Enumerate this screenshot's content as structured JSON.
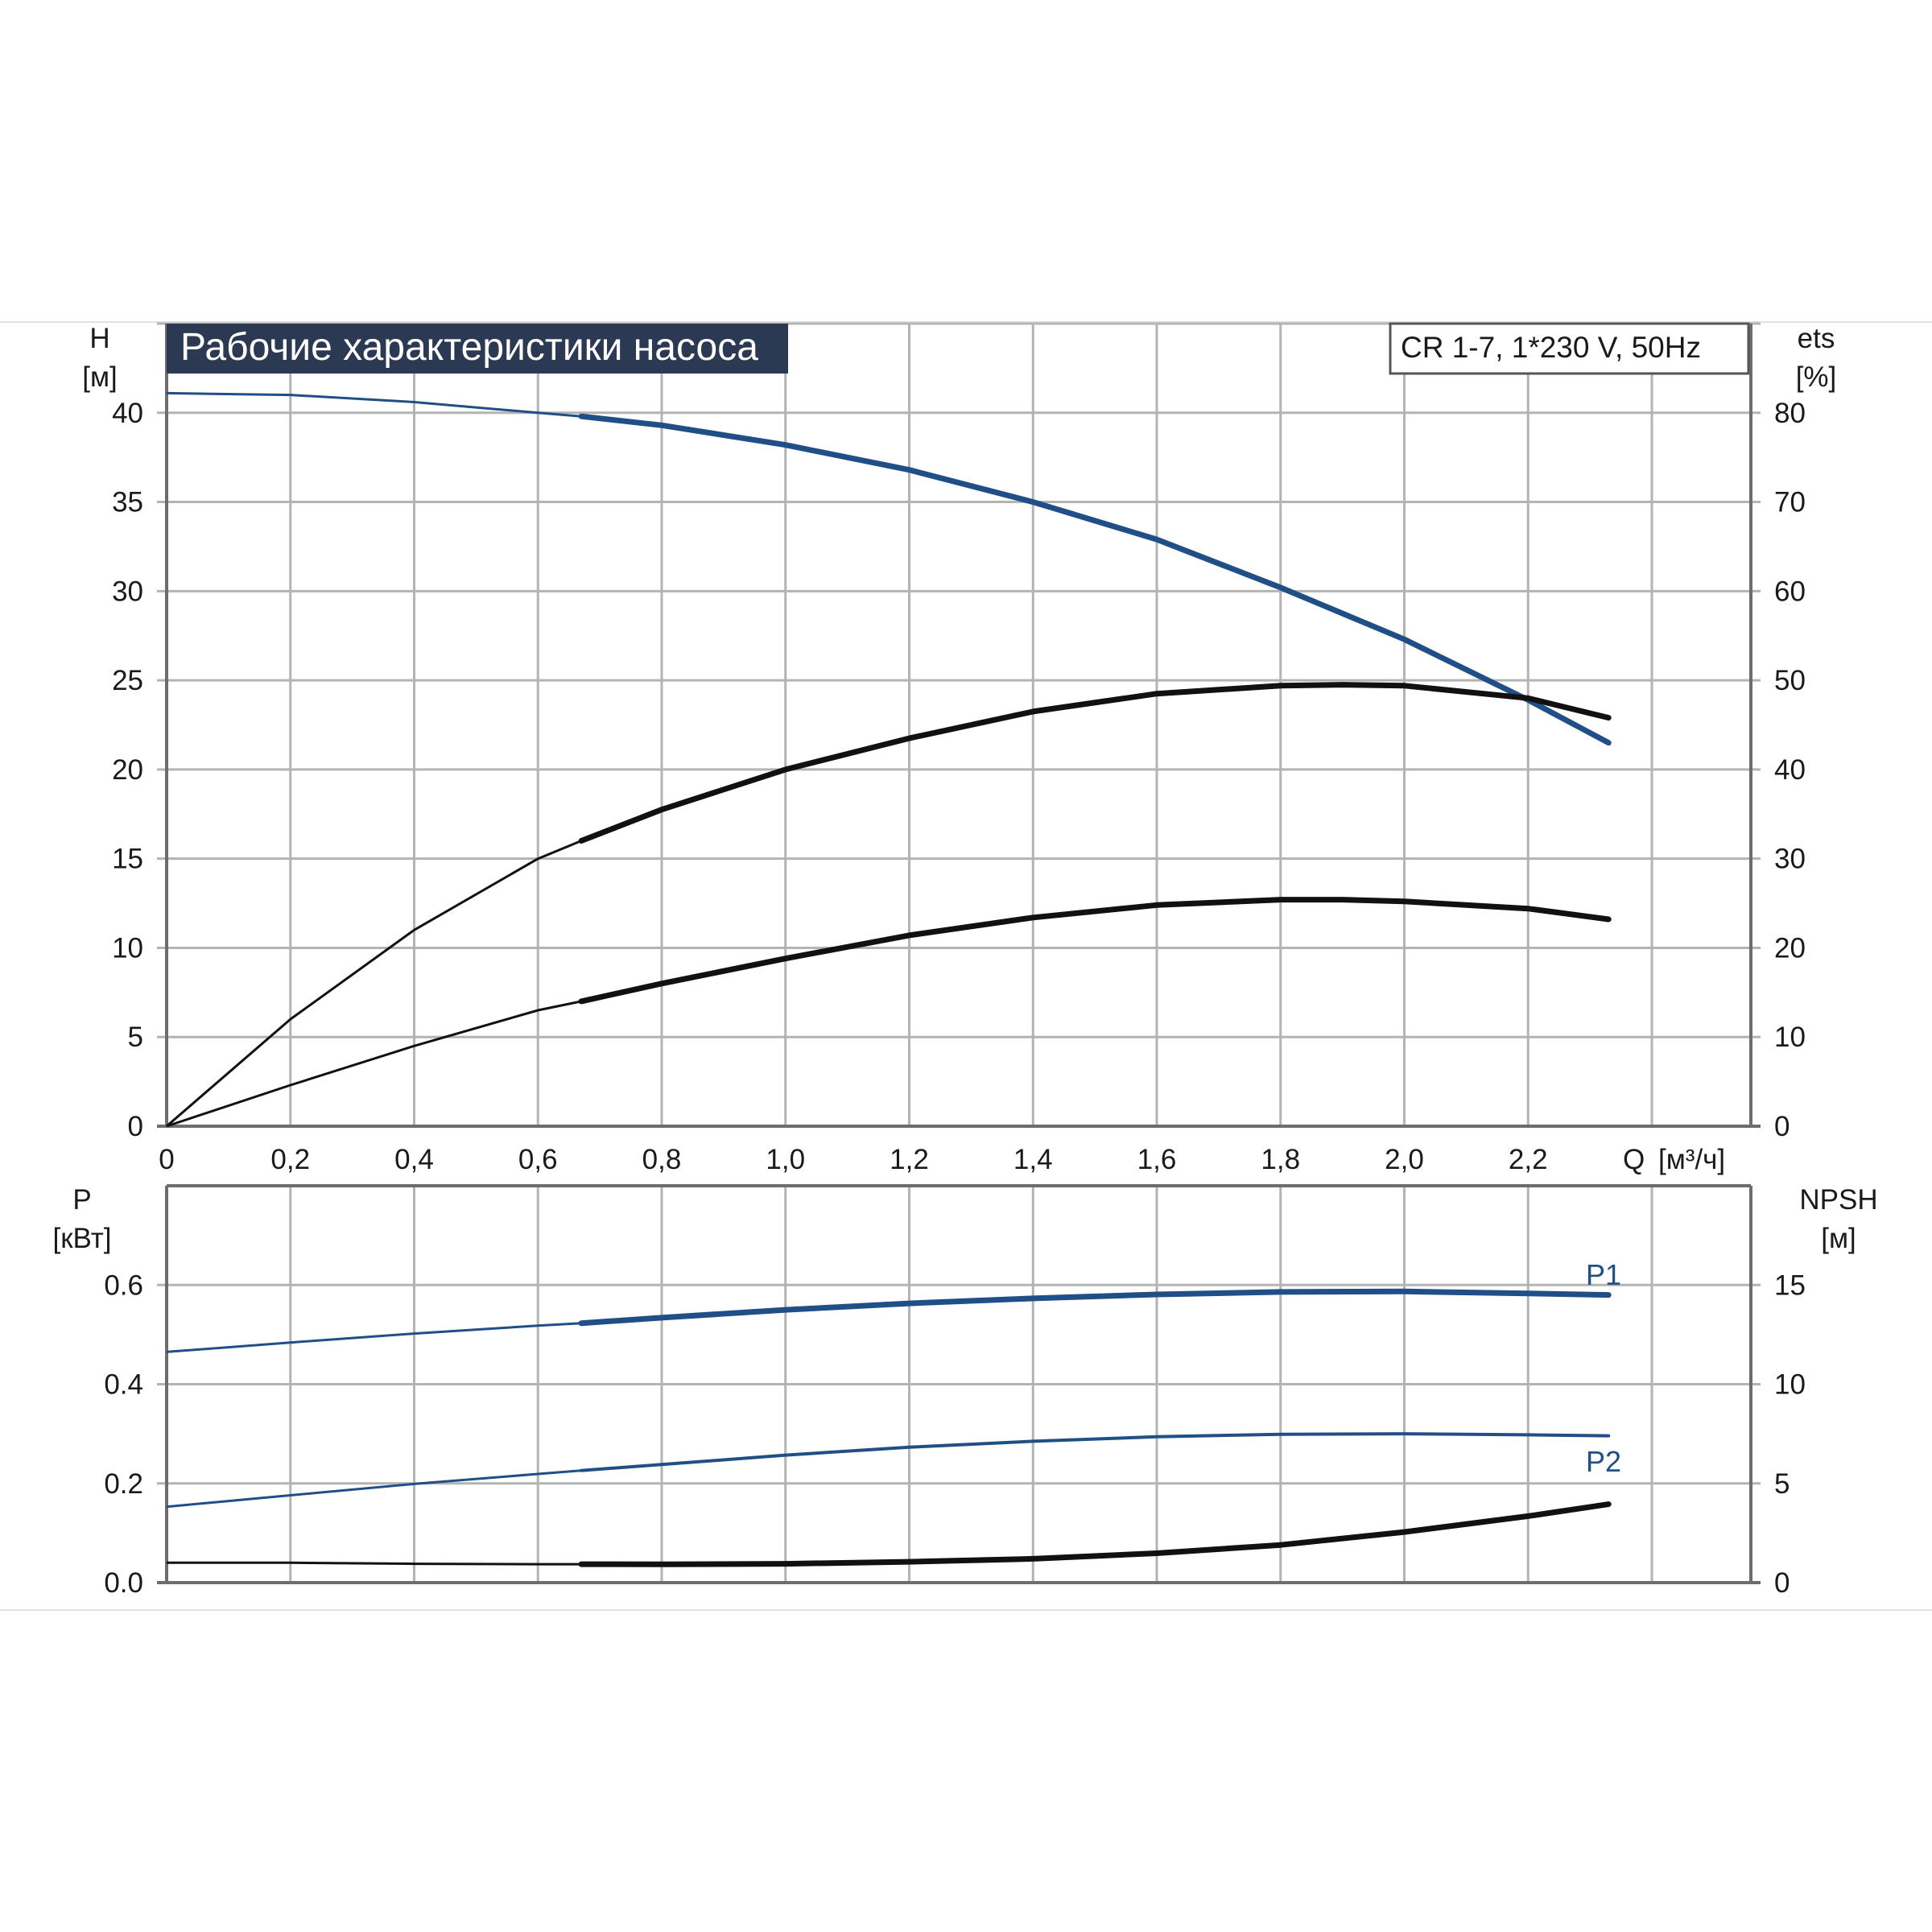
{
  "title": "Рабочие характеристики насоса",
  "model_label": "CR 1-7, 1*230 V, 50Hz",
  "colors": {
    "blue": "#1f4f86",
    "black": "#111111",
    "title_bg": "#2b3a52",
    "grid": "#b3b3b3"
  },
  "chart_data": [
    {
      "type": "line",
      "panel": "top",
      "left_axis": {
        "label": "H",
        "unit": "[м]",
        "ylim": [
          0,
          45
        ],
        "ticks": [
          "0",
          "5",
          "10",
          "15",
          "20",
          "25",
          "30",
          "35",
          "40"
        ],
        "tick_values": [
          0,
          5,
          10,
          15,
          20,
          25,
          30,
          35,
          40
        ]
      },
      "right_axis": {
        "label": "ets",
        "unit": "[%]",
        "ylim": [
          0,
          90
        ],
        "ticks": [
          "0",
          "10",
          "20",
          "30",
          "40",
          "50",
          "60",
          "70",
          "80"
        ],
        "tick_values": [
          0,
          10,
          20,
          30,
          40,
          50,
          60,
          70,
          80
        ]
      },
      "x_axis": {
        "label": "Q",
        "unit": "[м³/ч]",
        "xlim": [
          0,
          2.56
        ],
        "ticks": [
          "0",
          "0,2",
          "0,4",
          "0,6",
          "0,8",
          "1,0",
          "1,2",
          "1,4",
          "1,6",
          "1,8",
          "2,0",
          "2,2"
        ],
        "tick_values": [
          0,
          0.2,
          0.4,
          0.6,
          0.8,
          1.0,
          1.2,
          1.4,
          1.6,
          1.8,
          2.0,
          2.2
        ]
      },
      "grid": true,
      "series": [
        {
          "axis": "left",
          "color": "#1f4f86",
          "x": [
            0,
            0.2,
            0.4,
            0.6,
            0.67,
            0.8,
            1.0,
            1.2,
            1.4,
            1.6,
            1.8,
            2.0,
            2.2,
            2.33
          ],
          "y": [
            41.1,
            41.0,
            40.6,
            40.0,
            39.8,
            39.3,
            38.2,
            36.8,
            35.0,
            32.9,
            30.2,
            27.3,
            23.9,
            21.5
          ]
        },
        {
          "axis": "right",
          "color": "#111111",
          "x": [
            0,
            0.2,
            0.4,
            0.6,
            0.67,
            0.8,
            1.0,
            1.2,
            1.4,
            1.6,
            1.8,
            1.9,
            2.0,
            2.2,
            2.33
          ],
          "y": [
            0,
            12,
            22,
            30,
            32,
            35.5,
            40,
            43.5,
            46.5,
            48.5,
            49.4,
            49.5,
            49.4,
            48,
            45.8
          ]
        },
        {
          "axis": "left",
          "color": "#111111",
          "x": [
            0,
            0.2,
            0.4,
            0.6,
            0.67,
            0.8,
            1.0,
            1.2,
            1.4,
            1.6,
            1.8,
            1.9,
            2.0,
            2.2,
            2.33
          ],
          "y": [
            0,
            2.3,
            4.5,
            6.5,
            7.0,
            8.0,
            9.4,
            10.7,
            11.7,
            12.4,
            12.7,
            12.7,
            12.6,
            12.2,
            11.6
          ]
        }
      ]
    },
    {
      "type": "line",
      "panel": "bottom",
      "left_axis": {
        "label": "P",
        "unit": "[кВт]",
        "ylim": [
          0,
          0.8
        ],
        "ticks": [
          "0.0",
          "0.2",
          "0.4",
          "0.6"
        ],
        "tick_values": [
          0,
          0.2,
          0.4,
          0.6
        ]
      },
      "right_axis": {
        "label": "NPSH",
        "unit": "[м]",
        "ylim": [
          0,
          20
        ],
        "ticks": [
          "0",
          "5",
          "10",
          "15"
        ],
        "tick_values": [
          0,
          5,
          10,
          15
        ]
      },
      "x_axis": {
        "xlim": [
          0,
          2.56
        ],
        "tick_values": [
          0,
          0.2,
          0.4,
          0.6,
          0.8,
          1.0,
          1.2,
          1.4,
          1.6,
          1.8,
          2.0,
          2.2
        ]
      },
      "grid": true,
      "series": [
        {
          "name": "P1",
          "axis": "left",
          "color": "#1f4f86",
          "x": [
            0,
            0.2,
            0.4,
            0.6,
            0.67,
            0.8,
            1.0,
            1.2,
            1.4,
            1.6,
            1.8,
            2.0,
            2.2,
            2.33
          ],
          "y": [
            0.465,
            0.484,
            0.502,
            0.518,
            0.523,
            0.534,
            0.55,
            0.563,
            0.573,
            0.581,
            0.586,
            0.587,
            0.583,
            0.58
          ]
        },
        {
          "name": "P2",
          "axis": "left",
          "color": "#1f4f86",
          "x": [
            0,
            0.2,
            0.4,
            0.6,
            0.67,
            0.8,
            1.0,
            1.2,
            1.4,
            1.6,
            1.8,
            2.0,
            2.2,
            2.33
          ],
          "y": [
            0.153,
            0.176,
            0.199,
            0.219,
            0.226,
            0.238,
            0.257,
            0.273,
            0.285,
            0.294,
            0.299,
            0.3,
            0.298,
            0.296
          ]
        },
        {
          "axis": "right",
          "color": "#111111",
          "x": [
            0,
            0.2,
            0.4,
            0.6,
            0.67,
            0.8,
            1.0,
            1.2,
            1.4,
            1.6,
            1.8,
            2.0,
            2.2,
            2.33
          ],
          "y": [
            1.0,
            1.0,
            0.95,
            0.93,
            0.93,
            0.92,
            0.95,
            1.05,
            1.2,
            1.48,
            1.9,
            2.55,
            3.35,
            3.95
          ]
        }
      ]
    }
  ]
}
